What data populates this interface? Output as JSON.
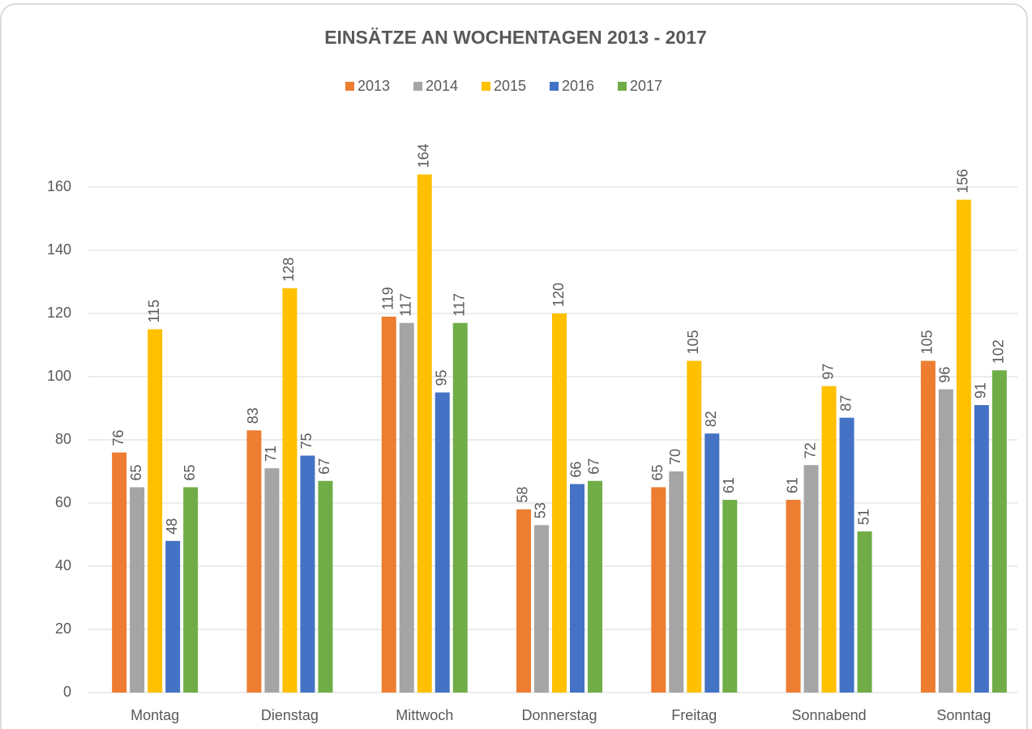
{
  "chart_data": {
    "type": "bar",
    "title": "EINSÄTZE AN WOCHENTAGEN 2013 - 2017",
    "categories": [
      "Montag",
      "Dienstag",
      "Mittwoch",
      "Donnerstag",
      "Freitag",
      "Sonnabend",
      "Sonntag"
    ],
    "series": [
      {
        "name": "2013",
        "color": "#ed7d31",
        "values": [
          76,
          83,
          119,
          58,
          65,
          61,
          105
        ]
      },
      {
        "name": "2014",
        "color": "#a5a5a5",
        "values": [
          65,
          71,
          117,
          53,
          70,
          72,
          96
        ]
      },
      {
        "name": "2015",
        "color": "#ffc000",
        "values": [
          115,
          128,
          164,
          120,
          105,
          97,
          156
        ]
      },
      {
        "name": "2016",
        "color": "#4472c4",
        "values": [
          48,
          75,
          95,
          66,
          82,
          87,
          91
        ]
      },
      {
        "name": "2017",
        "color": "#70ad47",
        "values": [
          65,
          67,
          117,
          67,
          61,
          51,
          102
        ]
      }
    ],
    "ylim": [
      0,
      180
    ],
    "yticks": [
      0,
      20,
      40,
      60,
      80,
      100,
      120,
      140,
      160
    ],
    "grid": true,
    "legend": "top"
  }
}
